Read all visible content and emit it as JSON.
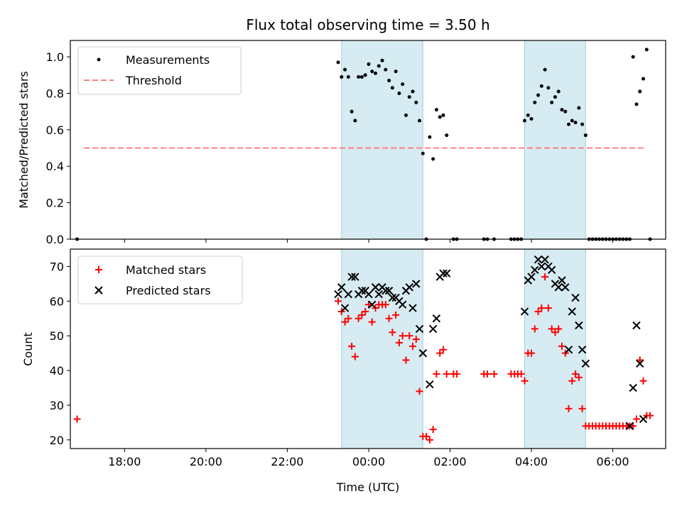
{
  "chart_data": [
    {
      "type": "scatter",
      "title": "Flux total observing time = 3.50 h",
      "xlabel": "",
      "ylabel": "Matched/Predicted stars",
      "xlim": [
        "16:40",
        "07:18"
      ],
      "ylim": [
        0,
        1.09
      ],
      "x_ticks": [
        "18:00",
        "20:00",
        "22:00",
        "00:00",
        "02:00",
        "04:00",
        "06:00"
      ],
      "y_ticks": [
        "0.0",
        "0.2",
        "0.4",
        "0.6",
        "0.8",
        "1.0"
      ],
      "grid": false,
      "legend_position": "top-left",
      "shaded_intervals": [
        [
          "23:20",
          "01:20"
        ],
        [
          "03:50",
          "05:20"
        ]
      ],
      "threshold": {
        "name": "Threshold",
        "y": 0.5,
        "x_range": [
          "17:00",
          "06:50"
        ],
        "color": "#ff7f7f"
      },
      "series": [
        {
          "name": "Measurements",
          "color": "#000000",
          "points": [
            [
              "16:50",
              0
            ],
            [
              "23:15",
              0.97
            ],
            [
              "23:20",
              0.89
            ],
            [
              "23:25",
              0.93
            ],
            [
              "23:30",
              0.89
            ],
            [
              "23:35",
              0.7
            ],
            [
              "23:40",
              0.65
            ],
            [
              "23:45",
              0.89
            ],
            [
              "23:50",
              0.89
            ],
            [
              "23:55",
              0.9
            ],
            [
              "00:00",
              0.96
            ],
            [
              "00:05",
              0.92
            ],
            [
              "00:10",
              0.91
            ],
            [
              "00:15",
              0.95
            ],
            [
              "00:20",
              0.98
            ],
            [
              "00:25",
              0.93
            ],
            [
              "00:30",
              0.87
            ],
            [
              "00:35",
              0.83
            ],
            [
              "00:40",
              0.92
            ],
            [
              "00:45",
              0.8
            ],
            [
              "00:50",
              0.85
            ],
            [
              "00:55",
              0.68
            ],
            [
              "01:00",
              0.78
            ],
            [
              "01:05",
              0.81
            ],
            [
              "01:10",
              0.75
            ],
            [
              "01:15",
              0.65
            ],
            [
              "01:20",
              0.47
            ],
            [
              "01:25",
              0
            ],
            [
              "01:30",
              0.56
            ],
            [
              "01:35",
              0.44
            ],
            [
              "01:40",
              0.71
            ],
            [
              "01:45",
              0.67
            ],
            [
              "01:50",
              0.68
            ],
            [
              "01:55",
              0.57
            ],
            [
              "02:05",
              0
            ],
            [
              "02:10",
              0
            ],
            [
              "02:50",
              0
            ],
            [
              "02:55",
              0
            ],
            [
              "03:05",
              0
            ],
            [
              "03:30",
              0
            ],
            [
              "03:35",
              0
            ],
            [
              "03:40",
              0
            ],
            [
              "03:45",
              0
            ],
            [
              "03:50",
              0.65
            ],
            [
              "03:55",
              0.68
            ],
            [
              "04:00",
              0.66
            ],
            [
              "04:05",
              0.75
            ],
            [
              "04:10",
              0.79
            ],
            [
              "04:15",
              0.84
            ],
            [
              "04:20",
              0.93
            ],
            [
              "04:25",
              0.83
            ],
            [
              "04:30",
              0.75
            ],
            [
              "04:35",
              0.78
            ],
            [
              "04:40",
              0.81
            ],
            [
              "04:45",
              0.71
            ],
            [
              "04:50",
              0.7
            ],
            [
              "04:55",
              0.63
            ],
            [
              "05:00",
              0.65
            ],
            [
              "05:05",
              0.64
            ],
            [
              "05:10",
              0.72
            ],
            [
              "05:15",
              0.63
            ],
            [
              "05:20",
              0.57
            ],
            [
              "05:25",
              0
            ],
            [
              "05:30",
              0
            ],
            [
              "05:35",
              0
            ],
            [
              "05:40",
              0
            ],
            [
              "05:45",
              0
            ],
            [
              "05:50",
              0
            ],
            [
              "05:55",
              0
            ],
            [
              "06:00",
              0
            ],
            [
              "06:05",
              0
            ],
            [
              "06:10",
              0
            ],
            [
              "06:15",
              0
            ],
            [
              "06:20",
              0
            ],
            [
              "06:25",
              0
            ],
            [
              "06:30",
              1.0
            ],
            [
              "06:35",
              0.74
            ],
            [
              "06:40",
              0.81
            ],
            [
              "06:45",
              0.88
            ],
            [
              "06:50",
              1.04
            ],
            [
              "06:55",
              0
            ]
          ]
        }
      ]
    },
    {
      "type": "scatter",
      "title": "",
      "xlabel": "Time (UTC)",
      "ylabel": "Count",
      "xlim": [
        "16:40",
        "07:18"
      ],
      "ylim": [
        17.5,
        75
      ],
      "x_ticks": [
        "18:00",
        "20:00",
        "22:00",
        "00:00",
        "02:00",
        "04:00",
        "06:00"
      ],
      "y_ticks": [
        "20",
        "30",
        "40",
        "50",
        "60",
        "70"
      ],
      "grid": false,
      "legend_position": "top-left",
      "shaded_intervals": [
        [
          "23:20",
          "01:20"
        ],
        [
          "03:50",
          "05:20"
        ]
      ],
      "series": [
        {
          "name": "Matched stars",
          "marker": "plus",
          "color": "#ff0000",
          "points": [
            [
              "16:50",
              26
            ],
            [
              "23:15",
              60
            ],
            [
              "23:20",
              57
            ],
            [
              "23:25",
              54
            ],
            [
              "23:30",
              55
            ],
            [
              "23:35",
              47
            ],
            [
              "23:40",
              44
            ],
            [
              "23:45",
              55
            ],
            [
              "23:50",
              56
            ],
            [
              "23:55",
              57
            ],
            [
              "00:00",
              59
            ],
            [
              "00:05",
              54
            ],
            [
              "00:10",
              58
            ],
            [
              "00:15",
              59
            ],
            [
              "00:20",
              59
            ],
            [
              "00:25",
              59
            ],
            [
              "00:30",
              55
            ],
            [
              "00:35",
              51
            ],
            [
              "00:40",
              56
            ],
            [
              "00:45",
              48
            ],
            [
              "00:50",
              50
            ],
            [
              "00:55",
              43
            ],
            [
              "01:00",
              50
            ],
            [
              "01:05",
              47
            ],
            [
              "01:10",
              49
            ],
            [
              "01:15",
              34
            ],
            [
              "01:20",
              21
            ],
            [
              "01:25",
              21
            ],
            [
              "01:30",
              20
            ],
            [
              "01:35",
              23
            ],
            [
              "01:40",
              39
            ],
            [
              "01:45",
              45
            ],
            [
              "01:50",
              46
            ],
            [
              "01:55",
              39
            ],
            [
              "02:05",
              39
            ],
            [
              "02:10",
              39
            ],
            [
              "02:50",
              39
            ],
            [
              "02:55",
              39
            ],
            [
              "03:05",
              39
            ],
            [
              "03:30",
              39
            ],
            [
              "03:35",
              39
            ],
            [
              "03:40",
              39
            ],
            [
              "03:45",
              39
            ],
            [
              "03:50",
              37
            ],
            [
              "03:55",
              45
            ],
            [
              "04:00",
              45
            ],
            [
              "04:05",
              52
            ],
            [
              "04:10",
              57
            ],
            [
              "04:15",
              58
            ],
            [
              "04:20",
              67
            ],
            [
              "04:25",
              58
            ],
            [
              "04:30",
              52
            ],
            [
              "04:35",
              51
            ],
            [
              "04:40",
              52
            ],
            [
              "04:45",
              47
            ],
            [
              "04:50",
              45
            ],
            [
              "04:55",
              29
            ],
            [
              "05:00",
              37
            ],
            [
              "05:05",
              39
            ],
            [
              "05:10",
              38
            ],
            [
              "05:15",
              29
            ],
            [
              "05:20",
              24
            ],
            [
              "05:25",
              24
            ],
            [
              "05:30",
              24
            ],
            [
              "05:35",
              24
            ],
            [
              "05:40",
              24
            ],
            [
              "05:45",
              24
            ],
            [
              "05:50",
              24
            ],
            [
              "05:55",
              24
            ],
            [
              "06:00",
              24
            ],
            [
              "06:05",
              24
            ],
            [
              "06:10",
              24
            ],
            [
              "06:15",
              24
            ],
            [
              "06:20",
              24
            ],
            [
              "06:25",
              24
            ],
            [
              "06:30",
              24
            ],
            [
              "06:35",
              26
            ],
            [
              "06:40",
              43
            ],
            [
              "06:45",
              37
            ],
            [
              "06:50",
              27
            ],
            [
              "06:55",
              27
            ]
          ]
        },
        {
          "name": "Predicted stars",
          "marker": "x",
          "color": "#000000",
          "points": [
            [
              "23:15",
              62
            ],
            [
              "23:20",
              64
            ],
            [
              "23:25",
              58
            ],
            [
              "23:30",
              62
            ],
            [
              "23:35",
              67
            ],
            [
              "23:40",
              67
            ],
            [
              "23:45",
              62
            ],
            [
              "23:50",
              63
            ],
            [
              "23:55",
              63
            ],
            [
              "00:00",
              62
            ],
            [
              "00:05",
              59
            ],
            [
              "00:10",
              64
            ],
            [
              "00:15",
              62
            ],
            [
              "00:20",
              64
            ],
            [
              "00:25",
              63
            ],
            [
              "00:30",
              63
            ],
            [
              "00:35",
              61
            ],
            [
              "00:40",
              61
            ],
            [
              "00:45",
              60
            ],
            [
              "00:50",
              59
            ],
            [
              "00:55",
              63
            ],
            [
              "01:00",
              64
            ],
            [
              "01:05",
              58
            ],
            [
              "01:10",
              65
            ],
            [
              "01:15",
              52
            ],
            [
              "01:20",
              45
            ],
            [
              "01:30",
              36
            ],
            [
              "01:35",
              52
            ],
            [
              "01:40",
              55
            ],
            [
              "01:45",
              67
            ],
            [
              "01:50",
              68
            ],
            [
              "01:55",
              68
            ],
            [
              "03:50",
              57
            ],
            [
              "03:55",
              66
            ],
            [
              "04:00",
              67
            ],
            [
              "04:05",
              69
            ],
            [
              "04:10",
              72
            ],
            [
              "04:15",
              70
            ],
            [
              "04:20",
              72
            ],
            [
              "04:25",
              70
            ],
            [
              "04:30",
              69
            ],
            [
              "04:35",
              65
            ],
            [
              "04:40",
              64
            ],
            [
              "04:45",
              66
            ],
            [
              "04:50",
              64
            ],
            [
              "04:55",
              46
            ],
            [
              "05:00",
              57
            ],
            [
              "05:05",
              61
            ],
            [
              "05:10",
              53
            ],
            [
              "05:15",
              46
            ],
            [
              "05:20",
              42
            ],
            [
              "06:25",
              24
            ],
            [
              "06:30",
              35
            ],
            [
              "06:35",
              53
            ],
            [
              "06:40",
              42
            ],
            [
              "06:45",
              26
            ]
          ]
        }
      ]
    }
  ]
}
